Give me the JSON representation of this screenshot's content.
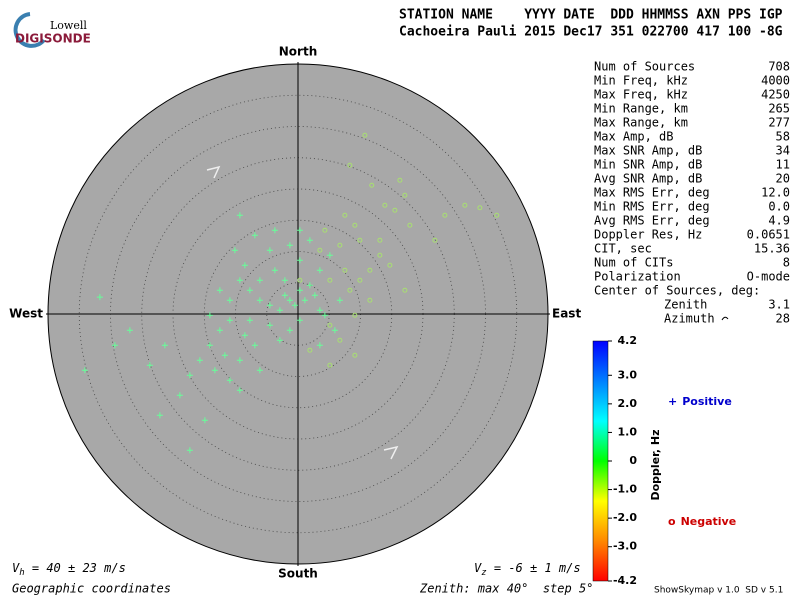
{
  "header": {
    "logo_top": "Lowell",
    "logo_bottom": "DIGISONDE",
    "line1": "STATION NAME    YYYY DATE  DDD HHMMSS AXN PPS IGP",
    "line2": "Cachoeira Pauli 2015 Dec17 351 022700 417 100 -8G"
  },
  "stats": {
    "rows": [
      [
        "Num of Sources",
        "708"
      ],
      [
        "Min Freq, kHz",
        "4000"
      ],
      [
        "Max Freq, kHz",
        "4250"
      ],
      [
        "Min Range, km",
        "265"
      ],
      [
        "Max Range, km",
        "277"
      ],
      [
        "Max Amp, dB",
        "58"
      ],
      [
        "Max SNR Amp, dB",
        "34"
      ],
      [
        "Min SNR Amp, dB",
        "11"
      ],
      [
        "Avg SNR Amp, dB",
        "20"
      ],
      [
        "Max RMS Err, deg",
        "12.0"
      ],
      [
        "Min RMS Err, deg",
        "0.0"
      ],
      [
        "Avg RMS Err, deg",
        "4.9"
      ],
      [
        "Doppler Res, Hz",
        "0.0651"
      ],
      [
        "CIT, sec",
        "15.36"
      ],
      [
        "Num of CITs",
        "8"
      ],
      [
        "Polarization",
        "O-mode"
      ]
    ],
    "center_title": "Center of Sources, deg:",
    "center_rows": [
      [
        "Zenith",
        "3.1"
      ],
      [
        "Azimuth",
        "28"
      ]
    ]
  },
  "chart_data": {
    "type": "skymap",
    "directions": {
      "north": "North",
      "south": "South",
      "east": "East",
      "west": "West"
    },
    "rlim": [
      0,
      40
    ],
    "rstep": 5,
    "zenith_label": "Zenith: max 40°  step 5°",
    "coords_label": "Geographic coordinates",
    "vh": {
      "symbol": "V",
      "sub": "h",
      "text": " = 40 ± 23 m/s"
    },
    "vz": {
      "symbol": "V",
      "sub": "z",
      "text": " = -6 ± 1 m/s"
    },
    "series": [
      {
        "name": "Positive",
        "marker": "+",
        "color": "#66ff99",
        "legend_color": "#0000cc",
        "x": [
          -1.3,
          -2.1,
          0.3,
          1.9,
          -2.9,
          -4.5,
          -6.1,
          -7.7,
          -9.3,
          -8.5,
          -4.5,
          -3.7,
          -1.3,
          0.3,
          3.5,
          5.1,
          -9.3,
          -6.9,
          -10.9,
          -12.5,
          -14.1,
          -15.7,
          -17.3,
          -18.9,
          -22.1,
          -17.3,
          -26.9,
          -29.3,
          -31.7,
          -34.1,
          -23.7,
          -21.3,
          -14.9,
          -10.9,
          -9.3,
          -6.1,
          -2.9,
          0.3,
          3.5,
          6.7,
          -1.3,
          -4.5,
          -7.7,
          -10.9,
          -12.5,
          -14.1,
          -6.1,
          -3.7,
          -2.1,
          -0.5,
          1.1,
          2.7,
          4.3,
          5.9,
          -8.5,
          -11.7,
          -13.3,
          -6.9,
          -9.3,
          3.5,
          -10.1,
          0.3,
          1.9
        ],
        "y": [
          2.2,
          3.0,
          3.8,
          4.6,
          0.6,
          1.4,
          2.2,
          3.8,
          5.4,
          7.8,
          10.2,
          13.4,
          11.0,
          8.6,
          7.0,
          9.4,
          15.8,
          12.6,
          -1.0,
          -2.6,
          -5.0,
          -7.4,
          -9.8,
          -13.0,
          -16.2,
          -21.8,
          -2.6,
          -5.0,
          2.7,
          -9.0,
          -8.2,
          -5.0,
          -17.0,
          -10.6,
          -12.2,
          -9.0,
          -4.2,
          -1.0,
          0.6,
          2.2,
          -2.6,
          -1.8,
          -1.0,
          2.2,
          3.8,
          -0.2,
          5.4,
          7.0,
          5.4,
          1.4,
          2.2,
          3.0,
          -0.2,
          -2.6,
          -3.4,
          -6.6,
          -9.0,
          -5.0,
          -7.4,
          -5.0,
          10.2,
          13.4,
          11.8
        ]
      },
      {
        "name": "Negative",
        "marker": "o",
        "color": "#a8e070",
        "legend_color": "#cc0000",
        "x": [
          10.7,
          8.3,
          11.8,
          16.3,
          17.1,
          13.9,
          23.5,
          26.7,
          29.1,
          31.8,
          17.9,
          21.9,
          13.1,
          14.7,
          17.1,
          9.1,
          6.7,
          7.5,
          9.9,
          4.3,
          5.1,
          8.3,
          11.5,
          9.1,
          5.1,
          6.7,
          9.1,
          5.1,
          1.9,
          11.5,
          13.1,
          15.5,
          3.5,
          7.5,
          0.3,
          9.9
        ],
        "y": [
          28.6,
          23.8,
          20.6,
          21.4,
          19.0,
          17.4,
          15.8,
          17.4,
          17.0,
          15.8,
          14.2,
          11.8,
          9.4,
          7.8,
          3.8,
          14.2,
          11.0,
          15.8,
          11.8,
          13.4,
          5.4,
          3.8,
          2.2,
          -0.2,
          -1.8,
          -4.2,
          -6.6,
          -8.2,
          -5.8,
          7.0,
          11.8,
          16.6,
          10.2,
          7.0,
          5.4,
          5.4
        ]
      }
    ],
    "colorbar": {
      "label": "Doppler, Hz",
      "lim": [
        -4.2,
        4.2
      ],
      "ticks": [
        4.2,
        {
          "value": 3,
          "label": "3.0"
        },
        {
          "value": 2,
          "label": "2.0"
        },
        {
          "value": 1,
          "label": "1.0"
        },
        0,
        {
          "value": -1,
          "label": "-1.0"
        },
        {
          "value": -2,
          "label": "-2.0"
        },
        {
          "value": -3,
          "label": "-3.0"
        },
        -4.2
      ],
      "colors": [
        "#ff0000",
        "#ff8800",
        "#ffff00",
        "#00ff00",
        "#00ffff",
        "#0080ff",
        "#0000ff"
      ]
    },
    "footer": "ShowSkymap v 1.0  SD v 5.1"
  }
}
